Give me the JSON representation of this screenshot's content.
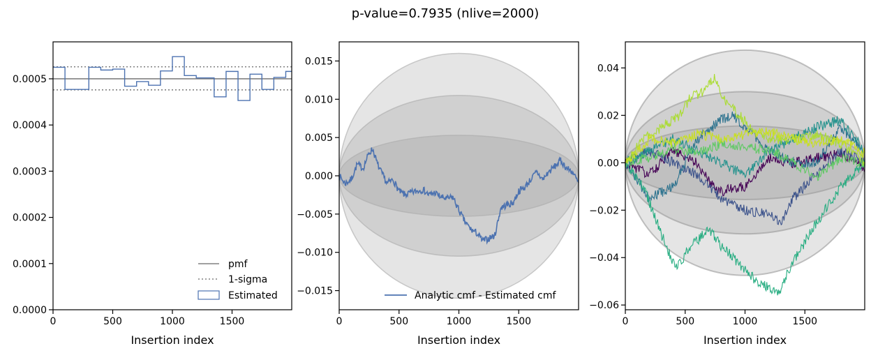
{
  "figure": {
    "suptitle": "p-value=0.7935 (nlive=2000)"
  },
  "chart_data": [
    {
      "type": "histogram",
      "xlabel": "Insertion index",
      "ylabel": "",
      "xlim": [
        0,
        2000
      ],
      "ylim": [
        0,
        0.00058
      ],
      "x_ticks": [
        "0",
        "500",
        "1000",
        "1500"
      ],
      "y_ticks": [
        "0.0000",
        "0.0001",
        "0.0002",
        "0.0003",
        "0.0004",
        "0.0005"
      ],
      "reference_lines": {
        "pmf": 0.0005,
        "sigma_low": 0.000476,
        "sigma_high": 0.000526
      },
      "bin_edges": [
        0,
        100,
        300,
        400,
        500,
        600,
        700,
        800,
        900,
        1000,
        1100,
        1200,
        1300,
        1350,
        1450,
        1550,
        1650,
        1750,
        1850,
        1950,
        2000
      ],
      "bin_values": [
        0.000525,
        0.000477,
        0.000525,
        0.000519,
        0.000521,
        0.000484,
        0.000494,
        0.000486,
        0.000517,
        0.000548,
        0.000507,
        0.000502,
        0.000502,
        0.000461,
        0.000516,
        0.000453,
        0.00051,
        0.000477,
        0.000503,
        0.000516
      ],
      "legend": {
        "position": "lower right",
        "entries": [
          {
            "label": "pmf",
            "style": "solid",
            "color": "#808080"
          },
          {
            "label": "1-sigma",
            "style": "dotted",
            "color": "#808080"
          },
          {
            "label": "Estimated",
            "style": "patch",
            "color": "#4c72b0"
          }
        ]
      },
      "colors": {
        "histogram": "#4c72b0",
        "reference": "#808080"
      }
    },
    {
      "type": "line",
      "xlabel": "Insertion index",
      "ylabel": "",
      "xlim": [
        0,
        2000
      ],
      "ylim": [
        -0.0175,
        0.0175
      ],
      "x_ticks": [
        "0",
        "500",
        "1000",
        "1500"
      ],
      "y_ticks": [
        "0.015",
        "0.010",
        "0.005",
        "0.000",
        "−0.005",
        "−0.010",
        "−0.015"
      ],
      "y_tick_values": [
        0.015,
        0.01,
        0.005,
        0,
        -0.005,
        -0.01,
        -0.015
      ],
      "confidence_bands": [
        0.016,
        0.0105,
        0.0053
      ],
      "series": [
        {
          "name": "Analytic cmf - Estimated cmf",
          "color": "#4c72b0",
          "x": [
            0,
            50,
            100,
            150,
            200,
            250,
            280,
            320,
            350,
            400,
            450,
            500,
            550,
            600,
            650,
            700,
            750,
            800,
            850,
            900,
            950,
            1000,
            1050,
            1100,
            1150,
            1200,
            1250,
            1300,
            1350,
            1400,
            1450,
            1500,
            1550,
            1600,
            1650,
            1700,
            1750,
            1800,
            1850,
            1900,
            1950,
            2000
          ],
          "y": [
            0.0,
            -0.001,
            -0.0005,
            0.0015,
            0.001,
            0.003,
            0.0035,
            0.0015,
            0.0005,
            -0.001,
            -0.0005,
            -0.002,
            -0.0025,
            -0.0022,
            -0.002,
            -0.0018,
            -0.0025,
            -0.0022,
            -0.0028,
            -0.003,
            -0.0028,
            -0.0045,
            -0.006,
            -0.007,
            -0.0075,
            -0.0085,
            -0.0082,
            -0.0078,
            -0.0042,
            -0.0038,
            -0.0036,
            -0.002,
            -0.0015,
            -0.0005,
            0.0005,
            -0.0005,
            0.0005,
            0.0012,
            0.002,
            0.001,
            0.0005,
            -0.001
          ]
        }
      ],
      "legend": {
        "position": "lower right"
      }
    },
    {
      "type": "line",
      "xlabel": "Insertion index",
      "ylabel": "",
      "xlim": [
        0,
        2000
      ],
      "ylim": [
        -0.062,
        0.051
      ],
      "x_ticks": [
        "0",
        "500",
        "1000",
        "1500"
      ],
      "y_ticks": [
        "0.04",
        "0.02",
        "0.00",
        "−0.02",
        "−0.04",
        "−0.06"
      ],
      "y_tick_values": [
        0.04,
        0.02,
        0,
        -0.02,
        -0.04,
        -0.06
      ],
      "confidence_bands": [
        0.0475,
        0.03,
        0.0155
      ],
      "series": [
        {
          "color": "#440154",
          "x": [
            0,
            200,
            400,
            600,
            700,
            800,
            1000,
            1200,
            1400,
            1600,
            1800,
            2000
          ],
          "y": [
            0.0,
            -0.005,
            0.005,
            0.0,
            -0.008,
            -0.012,
            -0.01,
            0.002,
            0.0,
            0.002,
            0.004,
            -0.002
          ]
        },
        {
          "color": "#3b528b",
          "x": [
            0,
            200,
            400,
            600,
            800,
            1000,
            1200,
            1300,
            1400,
            1600,
            1800,
            2000
          ],
          "y": [
            0.0,
            0.005,
            0.0,
            -0.005,
            -0.015,
            -0.02,
            -0.022,
            -0.025,
            -0.015,
            -0.005,
            0.005,
            0.0
          ]
        },
        {
          "color": "#2c728e",
          "x": [
            0,
            200,
            400,
            600,
            800,
            900,
            1000,
            1200,
            1400,
            1600,
            1800,
            2000
          ],
          "y": [
            0.0,
            -0.015,
            -0.01,
            0.01,
            0.018,
            0.02,
            0.015,
            0.005,
            0.0,
            0.0,
            0.015,
            0.005
          ]
        },
        {
          "color": "#21918c",
          "x": [
            0,
            200,
            400,
            600,
            800,
            1000,
            1200,
            1400,
            1600,
            1800,
            2000
          ],
          "y": [
            0.0,
            0.005,
            0.01,
            0.005,
            0.0,
            -0.005,
            0.005,
            0.01,
            0.015,
            0.018,
            0.005
          ]
        },
        {
          "color": "#27ad81",
          "x": [
            0,
            150,
            300,
            420,
            550,
            700,
            800,
            900,
            1000,
            1100,
            1200,
            1280,
            1400,
            1600,
            1800,
            2000
          ],
          "y": [
            0.0,
            -0.01,
            -0.03,
            -0.045,
            -0.035,
            -0.028,
            -0.035,
            -0.04,
            -0.045,
            -0.05,
            -0.053,
            -0.055,
            -0.042,
            -0.025,
            -0.01,
            0.0
          ]
        },
        {
          "color": "#5ec962",
          "x": [
            0,
            200,
            400,
            600,
            800,
            1000,
            1200,
            1400,
            1600,
            1800,
            2000
          ],
          "y": [
            0.0,
            0.002,
            0.006,
            0.004,
            0.008,
            0.006,
            0.006,
            0.0,
            -0.006,
            0.002,
            0.0
          ]
        },
        {
          "color": "#aadc32",
          "x": [
            0,
            150,
            300,
            450,
            550,
            650,
            750,
            800,
            850,
            950,
            1050,
            1200,
            1400,
            1600,
            1800,
            2000
          ],
          "y": [
            0.0,
            0.01,
            0.015,
            0.02,
            0.028,
            0.03,
            0.036,
            0.03,
            0.025,
            0.02,
            0.015,
            0.01,
            0.01,
            0.012,
            0.008,
            0.0
          ]
        },
        {
          "color": "#c8e020",
          "x": [
            0,
            200,
            400,
            600,
            800,
            1000,
            1200,
            1400,
            1600,
            1800,
            2000
          ],
          "y": [
            0.0,
            0.01,
            0.008,
            0.012,
            0.01,
            0.012,
            0.013,
            0.01,
            0.008,
            0.01,
            0.004
          ]
        }
      ]
    }
  ]
}
